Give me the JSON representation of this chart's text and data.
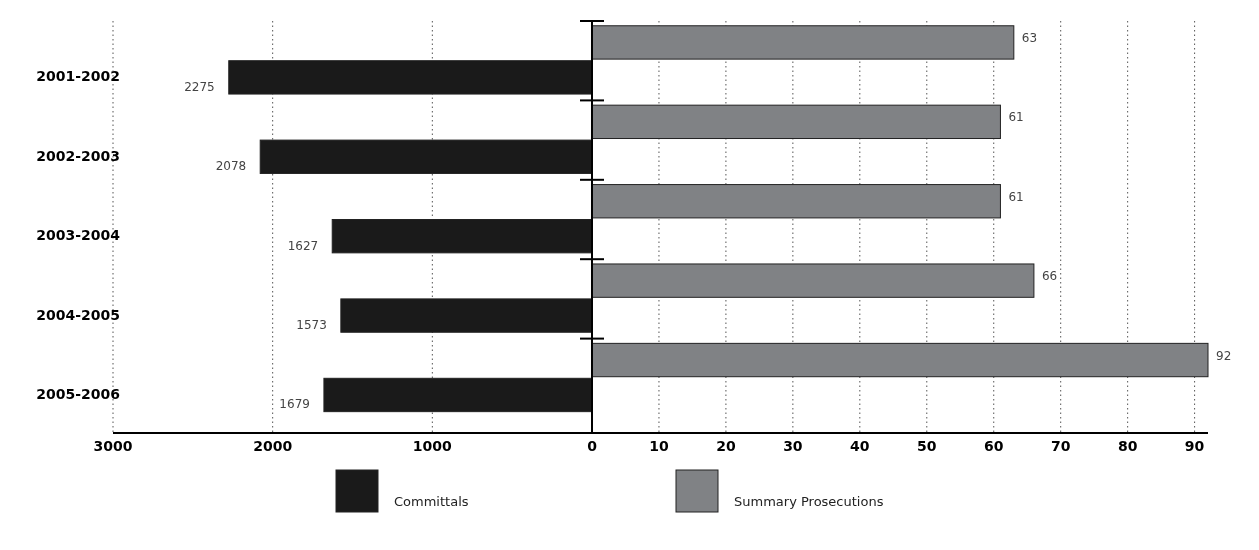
{
  "chart_data": [
    {
      "type": "bar",
      "orientation": "horizontal",
      "categories": [
        "2001-2002",
        "2002-2003",
        "2003-2004",
        "2004-2005",
        "2005-2006"
      ],
      "series": [
        {
          "name": "Committals",
          "color": "#1a1a1a",
          "values": [
            2275,
            2078,
            1627,
            1573,
            1679
          ]
        }
      ],
      "xlim": [
        3000,
        0
      ],
      "xticks": [
        3000,
        2000,
        1000,
        0
      ],
      "grid": "x",
      "legend": "bottom",
      "data_labels": true
    },
    {
      "type": "bar",
      "orientation": "horizontal",
      "categories": [
        null,
        null,
        null,
        null,
        null
      ],
      "series": [
        {
          "name": "Summary Prosecutions",
          "color": "#808285",
          "values": [
            63,
            61,
            61,
            66,
            92
          ]
        }
      ],
      "xlim": [
        0,
        92
      ],
      "xticks": [
        10,
        20,
        30,
        40,
        50,
        60,
        70,
        80,
        90
      ],
      "grid": "x",
      "legend": "bottom",
      "data_labels": true,
      "tick_labels": "x"
    }
  ]
}
